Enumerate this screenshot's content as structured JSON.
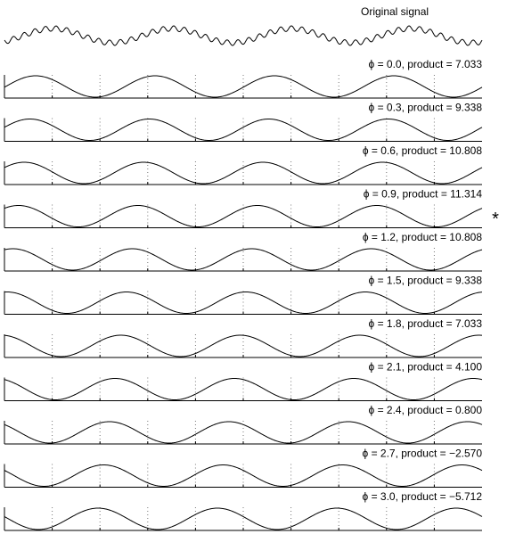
{
  "title": "Original signal",
  "marker": "*",
  "panels": [
    {
      "label": "ϕ = 0.0, product = 7.033",
      "phase": 0.0,
      "product": 7.033
    },
    {
      "label": "ϕ = 0.3, product = 9.338",
      "phase": 0.3,
      "product": 9.338
    },
    {
      "label": "ϕ = 0.6, product = 10.808",
      "phase": 0.6,
      "product": 10.808
    },
    {
      "label": "ϕ = 0.9, product = 11.314",
      "phase": 0.9,
      "product": 11.314
    },
    {
      "label": "ϕ = 1.2, product = 10.808",
      "phase": 1.2,
      "product": 10.808
    },
    {
      "label": "ϕ = 1.5, product = 9.338",
      "phase": 1.5,
      "product": 9.338
    },
    {
      "label": "ϕ = 1.8, product = 7.033",
      "phase": 1.8,
      "product": 7.033
    },
    {
      "label": "ϕ = 2.1, product = 4.100",
      "phase": 2.1,
      "product": 4.1
    },
    {
      "label": "ϕ = 2.4, product = 0.800",
      "phase": 2.4,
      "product": 0.8
    },
    {
      "label": "ϕ = 2.7, product = −2.570",
      "phase": 2.7,
      "product": -2.57
    },
    {
      "label": "ϕ = 3.0, product = −5.712",
      "phase": 3.0,
      "product": -5.712
    }
  ]
}
